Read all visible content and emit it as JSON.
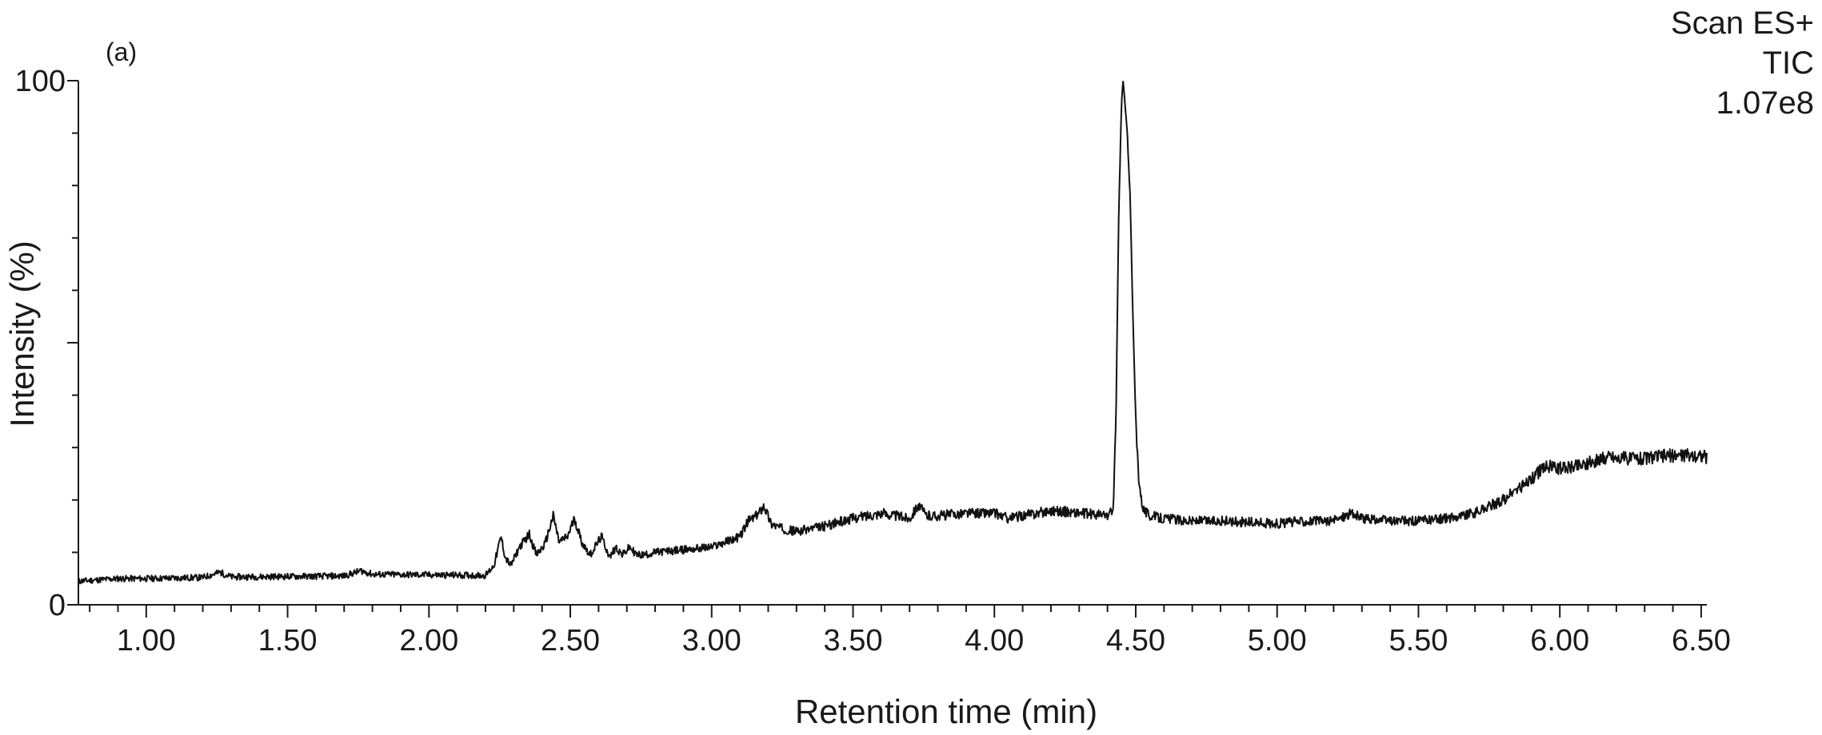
{
  "chart_data": {
    "type": "line",
    "panel_label": "(a)",
    "header_lines": [
      "Scan ES+",
      "TIC",
      "1.07e8"
    ],
    "xlabel": "Retention time (min)",
    "ylabel": "Intensity (%)",
    "xlim": [
      0.76,
      6.52
    ],
    "ylim": [
      0,
      100
    ],
    "x_ticks": [
      "1.00",
      "1.50",
      "2.00",
      "2.50",
      "3.00",
      "3.50",
      "4.00",
      "4.50",
      "5.00",
      "5.50",
      "6.00",
      "6.50"
    ],
    "y_tick_labels": [
      "0",
      "100"
    ],
    "y_ticks_unlabeled": [
      50
    ],
    "series": [
      {
        "x": [
          0.76,
          0.9,
          1.0,
          1.2,
          1.26,
          1.3,
          1.5,
          1.7,
          1.76,
          1.8,
          2.0,
          2.2,
          2.23,
          2.255,
          2.27,
          2.29,
          2.32,
          2.355,
          2.38,
          2.41,
          2.44,
          2.46,
          2.49,
          2.515,
          2.54,
          2.57,
          2.61,
          2.64,
          2.66,
          2.685,
          2.71,
          2.735,
          2.76,
          2.8,
          2.9,
          3.0,
          3.05,
          3.1,
          3.13,
          3.16,
          3.185,
          3.21,
          3.25,
          3.3,
          3.4,
          3.5,
          3.6,
          3.65,
          3.7,
          3.73,
          3.76,
          3.8,
          3.9,
          4.0,
          4.05,
          4.1,
          4.2,
          4.3,
          4.4,
          4.42,
          4.43,
          4.44,
          4.45,
          4.455,
          4.46,
          4.47,
          4.48,
          4.49,
          4.5,
          4.51,
          4.52,
          4.53,
          4.55,
          4.6,
          4.7,
          4.8,
          5.0,
          5.1,
          5.2,
          5.26,
          5.3,
          5.4,
          5.5,
          5.6,
          5.7,
          5.8,
          5.85,
          5.9,
          5.95,
          6.0,
          6.1,
          6.18,
          6.2,
          6.3,
          6.4,
          6.5,
          6.52
        ],
        "y": [
          4.5,
          5.0,
          5.0,
          5.2,
          6.2,
          5.3,
          5.4,
          5.5,
          6.5,
          5.8,
          5.7,
          5.6,
          7.5,
          13.0,
          9.0,
          7.5,
          11.0,
          13.5,
          9.5,
          11.5,
          17.0,
          12.0,
          13.0,
          16.5,
          12.0,
          9.5,
          13.0,
          9.0,
          11.0,
          9.5,
          11.0,
          9.5,
          9.5,
          10.0,
          10.5,
          11.0,
          12.0,
          13.0,
          16.0,
          17.0,
          19.0,
          15.5,
          14.5,
          14.0,
          15.0,
          16.5,
          17.5,
          17.0,
          16.5,
          19.0,
          17.0,
          17.0,
          17.5,
          17.5,
          16.5,
          17.0,
          18.0,
          17.5,
          17.0,
          18.0,
          35.0,
          75.0,
          96.0,
          100.0,
          97.0,
          90.0,
          78.0,
          55.0,
          35.0,
          25.0,
          20.0,
          18.0,
          17.0,
          16.5,
          16.0,
          16.0,
          15.5,
          16.0,
          16.0,
          17.5,
          16.5,
          16.0,
          16.0,
          16.5,
          17.5,
          20.0,
          22.0,
          24.0,
          26.5,
          26.0,
          27.0,
          28.5,
          28.0,
          28.0,
          28.5,
          28.5,
          28.0
        ]
      }
    ],
    "grid": false,
    "legend": "none",
    "line_color": "#111111"
  }
}
